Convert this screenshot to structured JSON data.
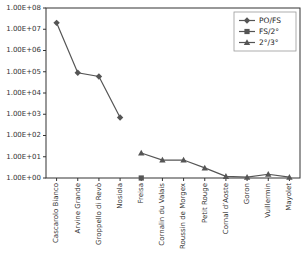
{
  "chart_data": {
    "type": "line",
    "categories": [
      "Cascarolo Bianco",
      "Arvine Grande",
      "Groppello di Revò",
      "Nosiola",
      "Freisa",
      "Cornalin du Valais",
      "Roussin de Morgex",
      "Petit Rouge",
      "Cornal d’Aoste",
      "Goron",
      "Vuillermin",
      "Mayolet"
    ],
    "series": [
      {
        "name": "PO/FS",
        "color": "#555555",
        "marker": "diamond",
        "values": [
          20000000,
          90000,
          60000,
          700,
          null,
          null,
          null,
          null,
          null,
          null,
          null,
          null
        ]
      },
      {
        "name": "FS/2°",
        "color": "#555555",
        "marker": "square",
        "values": [
          null,
          null,
          null,
          null,
          1,
          null,
          null,
          null,
          null,
          null,
          null,
          null
        ]
      },
      {
        "name": "2°/3°",
        "color": "#555555",
        "marker": "triangle",
        "values": [
          null,
          null,
          null,
          null,
          15,
          7,
          7,
          3,
          1.2,
          1.1,
          1.5,
          1.1
        ]
      }
    ],
    "log": "y",
    "ylim": [
      1,
      100000000
    ],
    "yticks": [
      {
        "value": 1,
        "label": "1.00E+00"
      },
      {
        "value": 10,
        "label": "1.00E+01"
      },
      {
        "value": 100,
        "label": "1.00E+02"
      },
      {
        "value": 1000,
        "label": "1.00E+03"
      },
      {
        "value": 10000,
        "label": "1.00E+04"
      },
      {
        "value": 100000,
        "label": "1.00E+05"
      },
      {
        "value": 1000000,
        "label": "1.00E+06"
      },
      {
        "value": 10000000,
        "label": "1.00E+07"
      },
      {
        "value": 100000000,
        "label": "1.00E+08"
      }
    ],
    "grid": false,
    "legend": "upper right"
  }
}
